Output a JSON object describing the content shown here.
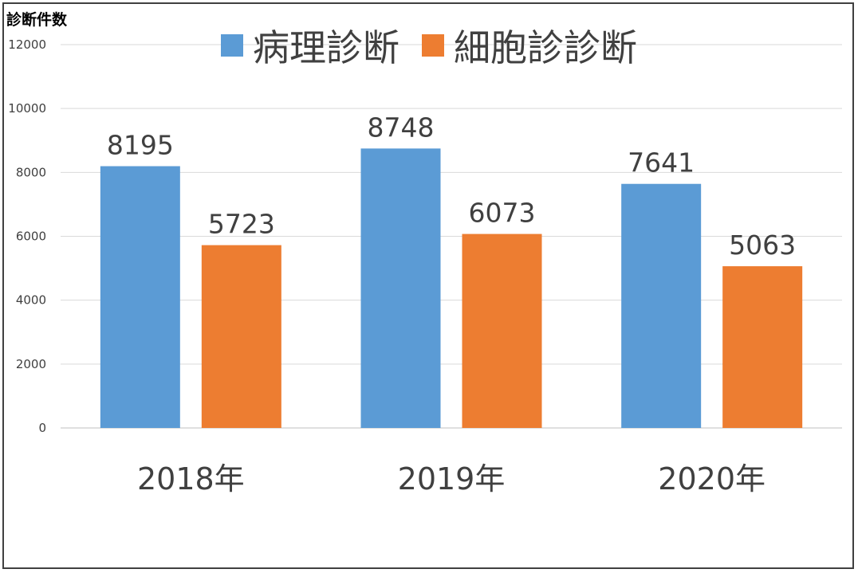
{
  "chart_data": {
    "type": "bar",
    "ylabel": "診断件数",
    "categories": [
      "2018年",
      "2019年",
      "2020年"
    ],
    "series": [
      {
        "name": "病理診断",
        "values": [
          8195,
          8748,
          7641
        ],
        "color": "#5b9bd5"
      },
      {
        "name": "細胞診診断",
        "values": [
          5723,
          6073,
          5063
        ],
        "color": "#ed7d31"
      }
    ],
    "ylim": [
      0,
      12000
    ],
    "yticks": [
      0,
      2000,
      4000,
      6000,
      8000,
      10000,
      12000
    ],
    "grid": true,
    "legend": "top-center",
    "data_labels": true
  }
}
